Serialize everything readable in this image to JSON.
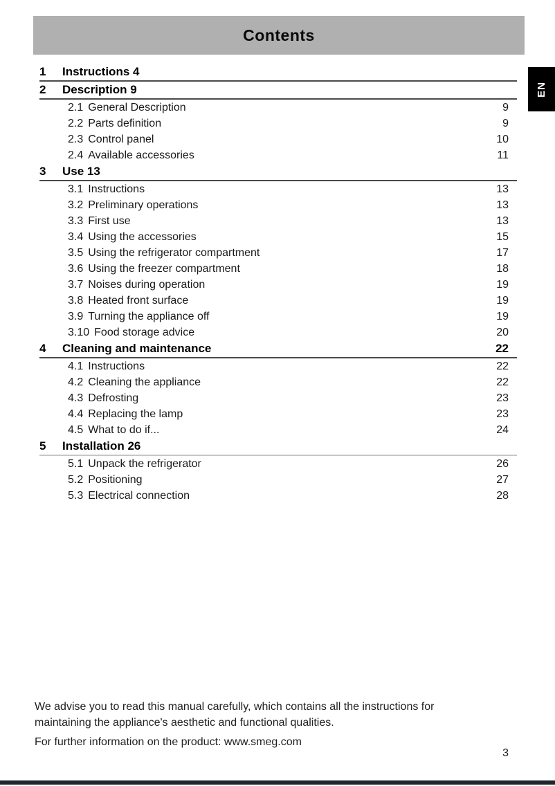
{
  "page": {
    "banner_title": "Contents",
    "language_tab": "EN",
    "page_number": "3",
    "footer": {
      "advice": "We advise you to read this manual carefully, which contains all the instructions for maintaining the appliance's aesthetic and functional qualities.",
      "info": "For further information on the product: www.smeg.com"
    }
  },
  "colors": {
    "banner_bg": "#b0b0b0",
    "tab_bg": "#000000",
    "rule_dark": "#4a4a4a",
    "rule_light": "#c6c6c6",
    "bottom_bar": "#20242c"
  },
  "toc": {
    "sections": [
      {
        "number": "1",
        "title": "Instructions 4",
        "page": "",
        "items": []
      },
      {
        "number": "2",
        "title": "Description 9",
        "page": "",
        "items": [
          {
            "number": "2.1",
            "title": "General Description",
            "page": "9"
          },
          {
            "number": "2.2",
            "title": "Parts definition",
            "page": "9"
          },
          {
            "number": "2.3",
            "title": "Control panel",
            "page": "10"
          },
          {
            "number": "2.4",
            "title": "Available accessories",
            "page": "11"
          }
        ]
      },
      {
        "number": "3",
        "title": "Use 13",
        "page": "",
        "items": [
          {
            "number": "3.1",
            "title": "Instructions",
            "page": "13"
          },
          {
            "number": "3.2",
            "title": "Preliminary operations",
            "page": "13"
          },
          {
            "number": "3.3",
            "title": "First use",
            "page": "13"
          },
          {
            "number": "3.4",
            "title": "Using the accessories",
            "page": "15"
          },
          {
            "number": "3.5",
            "title": "Using the refrigerator compartment",
            "page": "17"
          },
          {
            "number": "3.6",
            "title": "Using the freezer compartment",
            "page": "18"
          },
          {
            "number": "3.7",
            "title": "Noises during operation",
            "page": "19"
          },
          {
            "number": "3.8",
            "title": "Heated front surface",
            "page": "19"
          },
          {
            "number": "3.9",
            "title": "Turning the appliance off",
            "page": "19"
          },
          {
            "number": "3.10",
            "title": "Food storage advice",
            "page": "20"
          }
        ]
      },
      {
        "number": "4",
        "title": "Cleaning and maintenance",
        "page": "22",
        "items": [
          {
            "number": "4.1",
            "title": "Instructions",
            "page": "22"
          },
          {
            "number": "4.2",
            "title": "Cleaning the appliance",
            "page": "22"
          },
          {
            "number": "4.3",
            "title": "Defrosting",
            "page": "23"
          },
          {
            "number": "4.4",
            "title": "Replacing the lamp",
            "page": "23"
          },
          {
            "number": "4.5",
            "title": "What to do if...",
            "page": "24"
          }
        ]
      },
      {
        "number": "5",
        "title": "Installation 26",
        "page": "",
        "items": [
          {
            "number": "5.1",
            "title": "Unpack the refrigerator",
            "page": "26"
          },
          {
            "number": "5.2",
            "title": "Positioning",
            "page": "27"
          },
          {
            "number": "5.3",
            "title": "Electrical connection",
            "page": "28"
          }
        ]
      }
    ]
  }
}
